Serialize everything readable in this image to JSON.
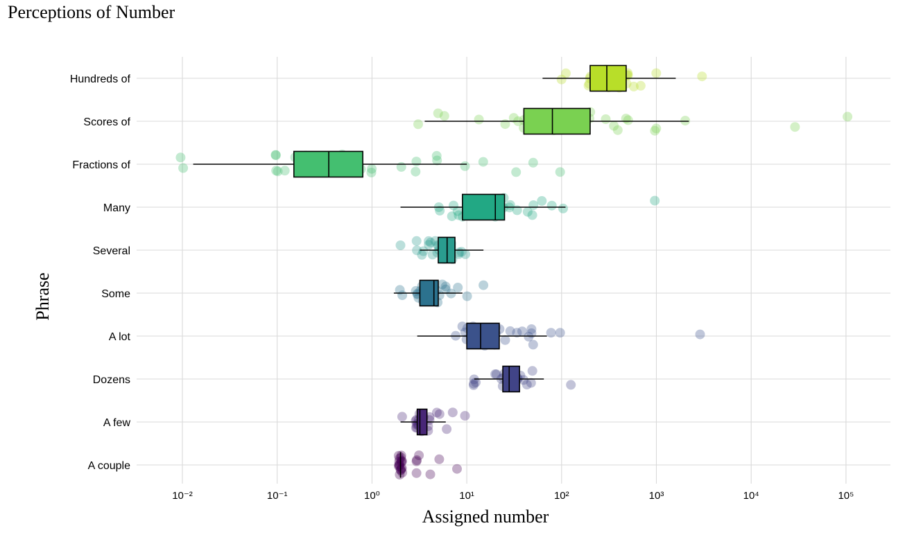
{
  "chart_data": {
    "type": "boxplot",
    "title": "Perceptions of Number",
    "xlabel": "Assigned number",
    "ylabel": "Phrase",
    "x_scale": "log10",
    "xlim": [
      0.004,
      2500000
    ],
    "x_ticks": [
      {
        "value": 0.01,
        "label": "10⁻²"
      },
      {
        "value": 0.1,
        "label": "10⁻¹"
      },
      {
        "value": 1,
        "label": "10⁰"
      },
      {
        "value": 10,
        "label": "10¹"
      },
      {
        "value": 100,
        "label": "10²"
      },
      {
        "value": 1000,
        "label": "10³"
      },
      {
        "value": 10000,
        "label": "10⁴"
      },
      {
        "value": 100000,
        "label": "10⁵"
      }
    ],
    "grid": true,
    "legend": "none",
    "categories": [
      "Hundreds of",
      "Scores of",
      "Fractions of",
      "Many",
      "Several",
      "Some",
      "A lot",
      "Dozens",
      "A few",
      "A couple"
    ],
    "series": [
      {
        "category": "Hundreds of",
        "color": "#b8de29",
        "box": {
          "whisker_low": 63,
          "q1": 200,
          "median": 300,
          "q3": 480,
          "whisker_high": 1600
        },
        "points": [
          100,
          115,
          200,
          200,
          200,
          200,
          220,
          250,
          280,
          300,
          300,
          300,
          320,
          350,
          400,
          400,
          420,
          500,
          500,
          500,
          500,
          600,
          700,
          1000,
          3000
        ]
      },
      {
        "category": "Scores of",
        "color": "#7ad151",
        "box": {
          "whisker_low": 3.6,
          "q1": 40,
          "median": 80,
          "q3": 200,
          "whisker_high": 2200
        },
        "points": [
          3,
          6,
          5,
          14,
          25,
          30,
          35,
          40,
          40,
          45,
          50,
          60,
          80,
          100,
          150,
          200,
          200,
          300,
          350,
          400,
          500,
          500,
          1000,
          1000,
          2000,
          30000,
          100000
        ]
      },
      {
        "category": "Fractions of",
        "color": "#44bf70",
        "box": {
          "whisker_low": 0.013,
          "q1": 0.15,
          "median": 0.35,
          "q3": 0.8,
          "whisker_high": 10
        },
        "points": [
          0.01,
          0.01,
          0.1,
          0.1,
          0.1,
          0.1,
          0.12,
          0.15,
          0.2,
          0.25,
          0.3,
          0.35,
          0.4,
          0.5,
          0.5,
          0.5,
          0.6,
          0.8,
          1,
          1,
          2,
          3,
          3,
          5,
          5,
          10,
          15,
          33,
          50,
          100
        ]
      },
      {
        "category": "Many",
        "color": "#22a884",
        "box": {
          "whisker_low": 2,
          "q1": 9,
          "median": 20,
          "q3": 25,
          "whisker_high": 110
        },
        "points": [
          5,
          5,
          7,
          7,
          8,
          8,
          9,
          10,
          10,
          10,
          12,
          14,
          15,
          17,
          20,
          20,
          20,
          22,
          25,
          25,
          27,
          30,
          35,
          45,
          50,
          50,
          60,
          80,
          100,
          1000
        ]
      },
      {
        "category": "Several",
        "color": "#2a9d8f",
        "box": {
          "whisker_low": 3.2,
          "q1": 5,
          "median": 6.2,
          "q3": 7.5,
          "whisker_high": 15
        },
        "points": [
          2,
          3,
          3,
          3.5,
          3.5,
          4,
          4,
          4,
          4.5,
          4.5,
          5,
          5,
          5,
          5,
          5.5,
          6,
          6,
          6,
          6.5,
          7,
          7,
          7,
          8,
          8,
          9,
          10
        ]
      },
      {
        "category": "Some",
        "color": "#2c728e",
        "box": {
          "whisker_low": 1.7,
          "q1": 3.2,
          "median": 4.5,
          "q3": 5,
          "whisker_high": 9
        },
        "points": [
          2,
          2,
          3,
          3,
          3,
          3,
          3.2,
          3.5,
          3.5,
          4,
          4,
          4,
          4,
          4.5,
          5,
          5,
          5,
          5.5,
          6,
          6,
          7,
          8,
          10,
          15
        ]
      },
      {
        "category": "A lot",
        "color": "#3b528b",
        "box": {
          "whisker_low": 3,
          "q1": 10,
          "median": 14,
          "q3": 22,
          "whisker_high": 70
        },
        "points": [
          8,
          9,
          10,
          10,
          10,
          12,
          12,
          15,
          15,
          15,
          18,
          20,
          20,
          20,
          22,
          25,
          30,
          35,
          40,
          45,
          50,
          50,
          50,
          80,
          100,
          3000
        ]
      },
      {
        "category": "Dozens",
        "color": "#414487",
        "box": {
          "whisker_low": 12,
          "q1": 24,
          "median": 28,
          "q3": 36,
          "whisker_high": 65
        },
        "points": [
          12,
          12,
          12,
          12,
          20,
          20,
          24,
          24,
          24,
          25,
          28,
          30,
          30,
          30,
          32,
          36,
          36,
          36,
          40,
          45,
          48,
          48,
          120
        ]
      },
      {
        "category": "A few",
        "color": "#482677",
        "box": {
          "whisker_low": 2,
          "q1": 3,
          "median": 3.2,
          "q3": 3.8,
          "whisker_high": 6
        },
        "points": [
          2,
          3,
          3,
          3,
          3,
          3,
          3,
          3,
          3,
          3.2,
          3.5,
          3.5,
          4,
          4,
          4,
          4,
          5,
          5,
          6,
          7,
          10
        ]
      },
      {
        "category": "A couple",
        "color": "#440154",
        "box": {
          "whisker_low": 2,
          "q1": 2,
          "median": 2,
          "q3": 2,
          "whisker_high": 2
        },
        "points": [
          2,
          2,
          2,
          2,
          2,
          2,
          2,
          2,
          2,
          2,
          2,
          2,
          2,
          2,
          2,
          2,
          2,
          2,
          3,
          3,
          3,
          3,
          4,
          5,
          8
        ]
      }
    ]
  }
}
